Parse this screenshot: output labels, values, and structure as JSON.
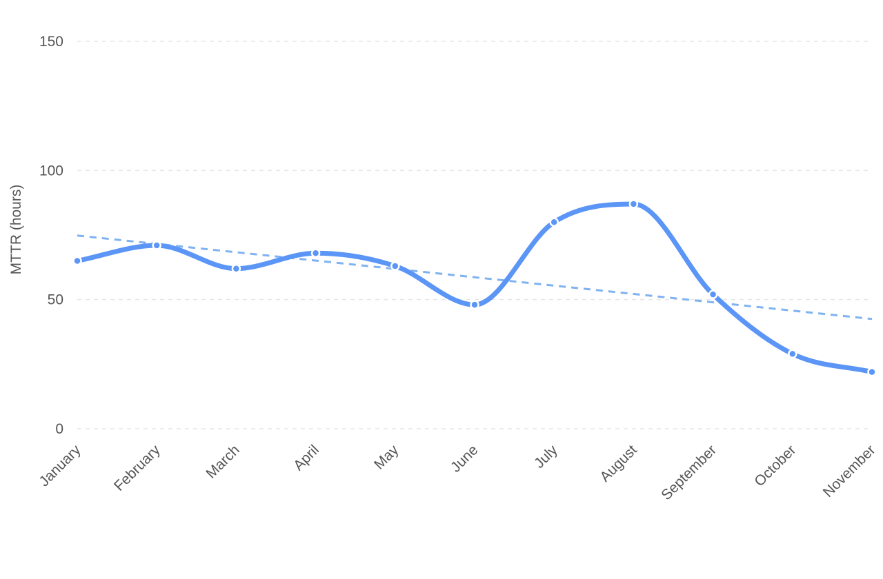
{
  "chart_data": {
    "type": "line",
    "categories": [
      "January",
      "February",
      "March",
      "April",
      "May",
      "June",
      "July",
      "August",
      "September",
      "October",
      "November"
    ],
    "series": [
      {
        "values": [
          65,
          71,
          62,
          68,
          63,
          48,
          80,
          87,
          52,
          29,
          22
        ],
        "color": "#5b95f5"
      }
    ],
    "trendline": {
      "start": 74.8,
      "end": 42.5,
      "color": "#7fb2f0",
      "style": "dashed"
    },
    "ylabel": "MTTR (hours)",
    "xlabel": "",
    "ylim": [
      0,
      150
    ],
    "yticks": [
      0,
      50,
      100,
      150
    ],
    "grid": true,
    "smooth": true
  }
}
